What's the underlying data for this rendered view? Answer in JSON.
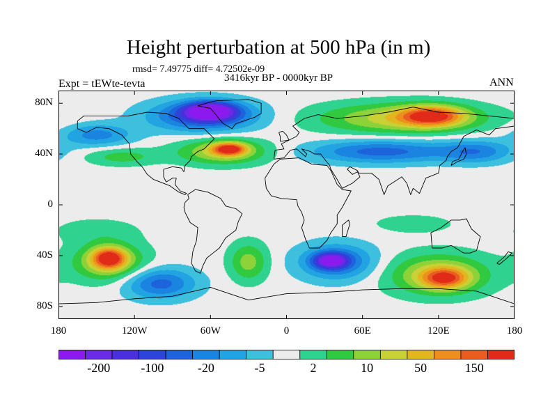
{
  "chart_data": {
    "type": "heatmap",
    "title": "Height perturbation at 500 hPa (in m)",
    "stats_text": "rmsd= 7.49775 diff= 4.72502e-09",
    "period_text": "3416kyr BP - 0000kyr BP",
    "experiment_text": "Expt = tEWte-tevta",
    "season_text": "ANN",
    "x_ticks": [
      "180",
      "120W",
      "60W",
      "0",
      "60E",
      "120E",
      "180"
    ],
    "y_ticks": [
      "80N",
      "40N",
      "0",
      "40S",
      "80S"
    ],
    "xlim": [
      -180,
      180
    ],
    "ylim": [
      -90,
      90
    ],
    "colorbar": {
      "colors": [
        "#8c1aef",
        "#6a2be5",
        "#4a30dc",
        "#2c45d8",
        "#1d63dc",
        "#1b84e0",
        "#22a4e2",
        "#3cc0dd",
        "#ececec",
        "#2fd38f",
        "#30c93f",
        "#8ed23a",
        "#c8d135",
        "#e3b61f",
        "#ec8f1e",
        "#ea5d20",
        "#e02b18"
      ],
      "labels": [
        "-200",
        "-100",
        "-20",
        "-5",
        "2",
        "10",
        "50",
        "150"
      ]
    },
    "anomaly_regions": [
      {
        "name": "arctic-canada-greenland-low",
        "lon": -65,
        "lat": 70,
        "sx": 42,
        "sy": 12,
        "class": -5
      },
      {
        "name": "arctic-canada-greenland-low-core",
        "lon": -60,
        "lat": 74,
        "sx": 20,
        "sy": 7,
        "class": -7
      },
      {
        "name": "north-pacific-low",
        "lon": -150,
        "lat": 55,
        "sx": 28,
        "sy": 9,
        "class": -3
      },
      {
        "name": "eurasia-arctic-high",
        "lon": 90,
        "lat": 68,
        "sx": 65,
        "sy": 12,
        "class": 4
      },
      {
        "name": "eurasia-arctic-high-core",
        "lon": 115,
        "lat": 70,
        "sx": 25,
        "sy": 8,
        "class": 6
      },
      {
        "name": "asia-low-band",
        "lon": 75,
        "lat": 42,
        "sx": 55,
        "sy": 9,
        "class": -4
      },
      {
        "name": "nw-pacific-low",
        "lon": 150,
        "lat": 42,
        "sx": 28,
        "sy": 9,
        "class": -3
      },
      {
        "name": "north-atlantic-high",
        "lon": -50,
        "lat": 42,
        "sx": 35,
        "sy": 10,
        "class": 4
      },
      {
        "name": "north-atlantic-high-core",
        "lon": -45,
        "lat": 44,
        "sx": 13,
        "sy": 5,
        "class": 6
      },
      {
        "name": "pacific-high-band",
        "lon": -130,
        "lat": 38,
        "sx": 28,
        "sy": 7,
        "class": 2
      },
      {
        "name": "south-pacific-high",
        "lon": -140,
        "lat": -45,
        "sx": 28,
        "sy": 15,
        "class": 4
      },
      {
        "name": "south-pacific-high-core",
        "lon": -140,
        "lat": -42,
        "sx": 13,
        "sy": 8,
        "class": 6
      },
      {
        "name": "southern-ocean-pacific-low",
        "lon": -100,
        "lat": -62,
        "sx": 28,
        "sy": 12,
        "class": -4
      },
      {
        "name": "south-atlantic-high",
        "lon": -30,
        "lat": -45,
        "sx": 15,
        "sy": 15,
        "class": 3
      },
      {
        "name": "south-indian-low",
        "lon": 40,
        "lat": -45,
        "sx": 30,
        "sy": 14,
        "class": -4
      },
      {
        "name": "south-indian-low-core",
        "lon": 35,
        "lat": -44,
        "sx": 13,
        "sy": 6,
        "class": -6
      },
      {
        "name": "australia-south-high",
        "lon": 120,
        "lat": -55,
        "sx": 40,
        "sy": 16,
        "class": 4
      },
      {
        "name": "australia-south-high-core",
        "lon": 125,
        "lat": -58,
        "sx": 18,
        "sy": 8,
        "class": 5
      },
      {
        "name": "east-pacific-tropic-high",
        "lon": -150,
        "lat": -20,
        "sx": 35,
        "sy": 10,
        "class": 1
      },
      {
        "name": "tropical-band",
        "lon": 100,
        "lat": -15,
        "sx": 35,
        "sy": 8,
        "class": 1
      }
    ],
    "coastlines": [
      {
        "name": "north-america",
        "points": [
          [
            -165,
            66
          ],
          [
            -160,
            70
          ],
          [
            -140,
            70
          ],
          [
            -125,
            70
          ],
          [
            -110,
            73
          ],
          [
            -95,
            72
          ],
          [
            -85,
            68
          ],
          [
            -80,
            63
          ],
          [
            -77,
            60
          ],
          [
            -65,
            60
          ],
          [
            -57,
            52
          ],
          [
            -65,
            44
          ],
          [
            -70,
            42
          ],
          [
            -75,
            38
          ],
          [
            -76,
            35
          ],
          [
            -80,
            31
          ],
          [
            -81,
            26
          ],
          [
            -83,
            29
          ],
          [
            -90,
            30
          ],
          [
            -97,
            28
          ],
          [
            -97,
            22
          ],
          [
            -95,
            18
          ],
          [
            -90,
            21
          ],
          [
            -87,
            21
          ],
          [
            -88,
            16
          ],
          [
            -84,
            11
          ],
          [
            -79,
            9
          ],
          [
            -80,
            8
          ],
          [
            -85,
            10
          ],
          [
            -92,
            15
          ],
          [
            -105,
            20
          ],
          [
            -110,
            24
          ],
          [
            -114,
            30
          ],
          [
            -118,
            34
          ],
          [
            -123,
            40
          ],
          [
            -124,
            48
          ],
          [
            -130,
            55
          ],
          [
            -140,
            60
          ],
          [
            -150,
            61
          ],
          [
            -158,
            57
          ],
          [
            -165,
            60
          ],
          [
            -165,
            66
          ]
        ]
      },
      {
        "name": "greenland",
        "points": [
          [
            -55,
            82
          ],
          [
            -30,
            83
          ],
          [
            -20,
            80
          ],
          [
            -20,
            72
          ],
          [
            -25,
            69
          ],
          [
            -40,
            64
          ],
          [
            -43,
            60
          ],
          [
            -50,
            64
          ],
          [
            -55,
            70
          ],
          [
            -60,
            76
          ],
          [
            -70,
            78
          ],
          [
            -60,
            81
          ],
          [
            -55,
            82
          ]
        ]
      },
      {
        "name": "south-america",
        "points": [
          [
            -78,
            8
          ],
          [
            -72,
            12
          ],
          [
            -62,
            10
          ],
          [
            -52,
            5
          ],
          [
            -48,
            -1
          ],
          [
            -40,
            -3
          ],
          [
            -35,
            -7
          ],
          [
            -38,
            -13
          ],
          [
            -40,
            -20
          ],
          [
            -48,
            -26
          ],
          [
            -53,
            -34
          ],
          [
            -58,
            -38
          ],
          [
            -63,
            -42
          ],
          [
            -66,
            -48
          ],
          [
            -68,
            -54
          ],
          [
            -72,
            -52
          ],
          [
            -75,
            -46
          ],
          [
            -74,
            -37
          ],
          [
            -71,
            -28
          ],
          [
            -70,
            -18
          ],
          [
            -76,
            -14
          ],
          [
            -80,
            -6
          ],
          [
            -81,
            -2
          ],
          [
            -80,
            2
          ],
          [
            -77,
            5
          ],
          [
            -78,
            8
          ]
        ]
      },
      {
        "name": "eurasia",
        "points": [
          [
            -10,
            36
          ],
          [
            -9,
            43
          ],
          [
            -2,
            44
          ],
          [
            -4,
            48
          ],
          [
            2,
            51
          ],
          [
            8,
            54
          ],
          [
            10,
            57
          ],
          [
            5,
            62
          ],
          [
            14,
            68
          ],
          [
            25,
            71
          ],
          [
            40,
            68
          ],
          [
            60,
            70
          ],
          [
            80,
            73
          ],
          [
            100,
            77
          ],
          [
            120,
            73
          ],
          [
            140,
            72
          ],
          [
            160,
            70
          ],
          [
            180,
            68
          ],
          [
            180,
            62
          ],
          [
            165,
            60
          ],
          [
            160,
            55
          ],
          [
            150,
            59
          ],
          [
            140,
            54
          ],
          [
            135,
            45
          ],
          [
            130,
            42
          ],
          [
            127,
            38
          ],
          [
            126,
            35
          ],
          [
            121,
            31
          ],
          [
            120,
            25
          ],
          [
            110,
            21
          ],
          [
            105,
            9
          ],
          [
            100,
            13
          ],
          [
            98,
            8
          ],
          [
            95,
            17
          ],
          [
            91,
            22
          ],
          [
            80,
            15
          ],
          [
            77,
            8
          ],
          [
            73,
            20
          ],
          [
            67,
            25
          ],
          [
            57,
            25
          ],
          [
            56,
            27
          ],
          [
            50,
            30
          ],
          [
            48,
            28
          ],
          [
            52,
            24
          ],
          [
            56,
            26
          ],
          [
            58,
            22
          ],
          [
            52,
            17
          ],
          [
            44,
            13
          ],
          [
            40,
            20
          ],
          [
            35,
            28
          ],
          [
            34,
            31
          ],
          [
            30,
            36
          ],
          [
            27,
            40
          ],
          [
            22,
            40
          ],
          [
            19,
            42
          ],
          [
            12,
            44
          ],
          [
            16,
            40
          ],
          [
            15,
            38
          ],
          [
            8,
            44
          ],
          [
            3,
            43
          ],
          [
            -2,
            37
          ],
          [
            -10,
            36
          ]
        ]
      },
      {
        "name": "africa",
        "points": [
          [
            -17,
            21
          ],
          [
            -16,
            13
          ],
          [
            -12,
            7
          ],
          [
            -4,
            5
          ],
          [
            8,
            4
          ],
          [
            9,
            -1
          ],
          [
            12,
            -6
          ],
          [
            14,
            -12
          ],
          [
            12,
            -18
          ],
          [
            15,
            -27
          ],
          [
            18,
            -34
          ],
          [
            26,
            -34
          ],
          [
            32,
            -28
          ],
          [
            35,
            -22
          ],
          [
            40,
            -15
          ],
          [
            40,
            -8
          ],
          [
            44,
            -2
          ],
          [
            51,
            11
          ],
          [
            44,
            12
          ],
          [
            40,
            16
          ],
          [
            35,
            27
          ],
          [
            32,
            31
          ],
          [
            20,
            32
          ],
          [
            10,
            37
          ],
          [
            -5,
            36
          ],
          [
            -10,
            32
          ],
          [
            -17,
            21
          ]
        ]
      },
      {
        "name": "australia",
        "points": [
          [
            114,
            -22
          ],
          [
            122,
            -18
          ],
          [
            130,
            -12
          ],
          [
            137,
            -12
          ],
          [
            142,
            -11
          ],
          [
            146,
            -19
          ],
          [
            153,
            -25
          ],
          [
            150,
            -36
          ],
          [
            145,
            -38
          ],
          [
            140,
            -38
          ],
          [
            135,
            -35
          ],
          [
            130,
            -32
          ],
          [
            123,
            -34
          ],
          [
            115,
            -34
          ],
          [
            114,
            -22
          ]
        ]
      },
      {
        "name": "antarctica",
        "points": [
          [
            -180,
            -78
          ],
          [
            -150,
            -77
          ],
          [
            -120,
            -74
          ],
          [
            -90,
            -72
          ],
          [
            -60,
            -65
          ],
          [
            -30,
            -75
          ],
          [
            0,
            -70
          ],
          [
            30,
            -69
          ],
          [
            60,
            -67
          ],
          [
            90,
            -66
          ],
          [
            120,
            -66
          ],
          [
            150,
            -68
          ],
          [
            180,
            -78
          ]
        ]
      },
      {
        "name": "british-isles",
        "points": [
          [
            -5,
            50
          ],
          [
            2,
            51
          ],
          [
            0,
            55
          ],
          [
            -3,
            58
          ],
          [
            -6,
            57
          ],
          [
            -5,
            54
          ],
          [
            -5,
            50
          ]
        ]
      },
      {
        "name": "japan",
        "points": [
          [
            130,
            31
          ],
          [
            135,
            34
          ],
          [
            140,
            36
          ],
          [
            142,
            40
          ],
          [
            141,
            45
          ],
          [
            139,
            42
          ],
          [
            136,
            36
          ],
          [
            131,
            34
          ],
          [
            130,
            31
          ]
        ]
      },
      {
        "name": "madagascar",
        "points": [
          [
            44,
            -25
          ],
          [
            47,
            -25
          ],
          [
            50,
            -15
          ],
          [
            49,
            -12
          ],
          [
            44,
            -16
          ],
          [
            44,
            -25
          ]
        ]
      },
      {
        "name": "new-zealand",
        "points": [
          [
            166,
            -46
          ],
          [
            172,
            -41
          ],
          [
            175,
            -37
          ],
          [
            178,
            -38
          ],
          [
            174,
            -42
          ],
          [
            168,
            -47
          ],
          [
            166,
            -46
          ]
        ]
      }
    ]
  }
}
